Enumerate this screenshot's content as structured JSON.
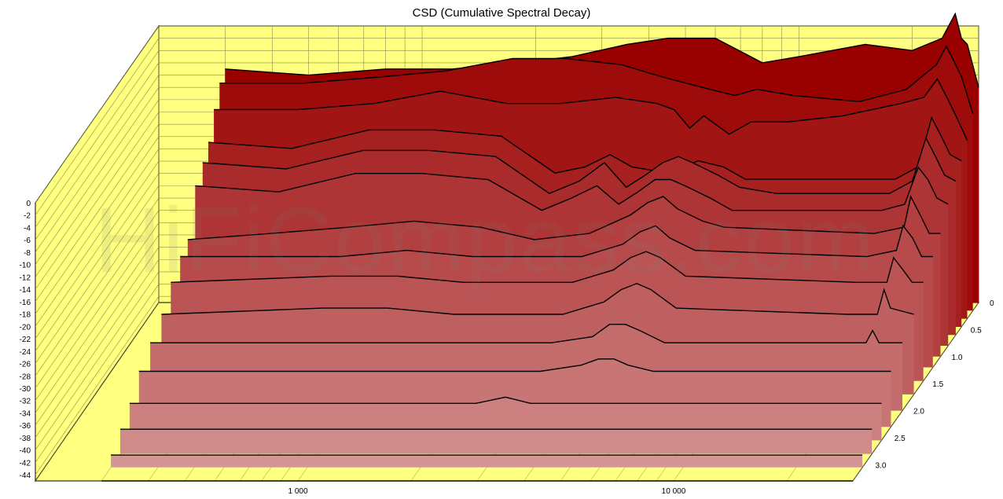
{
  "chart_data": {
    "type": "area",
    "title": "CSD (Cumulative Spectral Decay)",
    "watermark": "HiFiCompass.com",
    "x_scale": "log",
    "xlim": [
      200,
      30000
    ],
    "x_tick_labels": [
      {
        "value": 1000,
        "label": "1 000"
      },
      {
        "value": 10000,
        "label": "10 000"
      }
    ],
    "ylim": [
      -45,
      0
    ],
    "y_tick_labels": [
      "0",
      "-2",
      "-4",
      "-6",
      "-8",
      "-10",
      "-12",
      "-14",
      "-16",
      "-18",
      "-20",
      "-22",
      "-24",
      "-26",
      "-28",
      "-30",
      "-32",
      "-34",
      "-36",
      "-38",
      "-40",
      "-42",
      "-44"
    ],
    "z_tick_labels": [
      "0",
      "0.5",
      "1.0",
      "1.5",
      "2.0",
      "2.5",
      "3.0"
    ],
    "z_range": [
      0,
      3.3
    ],
    "colors": {
      "wall": "#ffff80",
      "grid": "#8c8c4a",
      "outline": "#000000",
      "slice_front": "#d9a0a0",
      "slice_back": "#990000"
    },
    "slices": [
      {
        "t": 0.0,
        "points": [
          [
            300,
            -7
          ],
          [
            500,
            -8
          ],
          [
            800,
            -7
          ],
          [
            1200,
            -7
          ],
          [
            1800,
            -6
          ],
          [
            2500,
            -5
          ],
          [
            3500,
            -3
          ],
          [
            4500,
            -2
          ],
          [
            6000,
            -2
          ],
          [
            8000,
            -6
          ],
          [
            10000,
            -5
          ],
          [
            15000,
            -3
          ],
          [
            20000,
            -4
          ],
          [
            24000,
            -2
          ],
          [
            26000,
            2
          ],
          [
            27000,
            -2
          ],
          [
            28000,
            -3
          ],
          [
            30000,
            -10
          ]
        ]
      },
      {
        "t": 0.15,
        "points": [
          [
            300,
            -8
          ],
          [
            500,
            -8
          ],
          [
            800,
            -7
          ],
          [
            1200,
            -6
          ],
          [
            1800,
            -4
          ],
          [
            2500,
            -4
          ],
          [
            3500,
            -5
          ],
          [
            4500,
            -7
          ],
          [
            6000,
            -9
          ],
          [
            7000,
            -10
          ],
          [
            8000,
            -9
          ],
          [
            10000,
            -10
          ],
          [
            15000,
            -11
          ],
          [
            20000,
            -9
          ],
          [
            24000,
            -5
          ],
          [
            25500,
            -2
          ],
          [
            26500,
            -4
          ],
          [
            28000,
            -7
          ],
          [
            30000,
            -13
          ]
        ]
      },
      {
        "t": 0.3,
        "points": [
          [
            300,
            -11
          ],
          [
            500,
            -11
          ],
          [
            800,
            -10
          ],
          [
            1200,
            -8
          ],
          [
            1800,
            -10
          ],
          [
            2500,
            -10
          ],
          [
            3500,
            -9
          ],
          [
            4500,
            -10
          ],
          [
            5000,
            -11
          ],
          [
            5500,
            -14
          ],
          [
            6000,
            -12
          ],
          [
            7000,
            -15
          ],
          [
            8000,
            -13
          ],
          [
            10000,
            -13
          ],
          [
            14000,
            -12
          ],
          [
            20000,
            -10
          ],
          [
            23000,
            -9
          ],
          [
            25000,
            -6
          ],
          [
            26500,
            -9
          ],
          [
            28000,
            -12
          ],
          [
            30000,
            -16
          ]
        ]
      },
      {
        "t": 0.45,
        "points": [
          [
            300,
            -15
          ],
          [
            500,
            -16
          ],
          [
            800,
            -13
          ],
          [
            1200,
            -13
          ],
          [
            1800,
            -14
          ],
          [
            2500,
            -20
          ],
          [
            3000,
            -19
          ],
          [
            3500,
            -17
          ],
          [
            4000,
            -19
          ],
          [
            5000,
            -20
          ],
          [
            6000,
            -18
          ],
          [
            7000,
            -19
          ],
          [
            8000,
            -21
          ],
          [
            10000,
            -21
          ],
          [
            20000,
            -21
          ],
          [
            23000,
            -19
          ],
          [
            25000,
            -11
          ],
          [
            26500,
            -14
          ],
          [
            28000,
            -17
          ],
          [
            30000,
            -18
          ]
        ]
      },
      {
        "t": 0.6,
        "points": [
          [
            300,
            -17
          ],
          [
            500,
            -18
          ],
          [
            800,
            -15
          ],
          [
            1200,
            -15
          ],
          [
            1800,
            -16
          ],
          [
            2500,
            -22
          ],
          [
            3000,
            -20
          ],
          [
            3500,
            -17
          ],
          [
            4000,
            -21
          ],
          [
            4500,
            -19
          ],
          [
            5000,
            -17
          ],
          [
            5500,
            -16
          ],
          [
            6000,
            -17
          ],
          [
            7000,
            -19
          ],
          [
            8000,
            -21
          ],
          [
            10000,
            -22
          ],
          [
            20000,
            -22
          ],
          [
            23000,
            -20
          ],
          [
            25000,
            -13
          ],
          [
            26500,
            -16
          ],
          [
            28000,
            -19
          ],
          [
            30000,
            -20
          ]
        ]
      },
      {
        "t": 0.8,
        "points": [
          [
            300,
            -19
          ],
          [
            500,
            -20
          ],
          [
            800,
            -17
          ],
          [
            1200,
            -17
          ],
          [
            1800,
            -18
          ],
          [
            2500,
            -23
          ],
          [
            3000,
            -21
          ],
          [
            3500,
            -19
          ],
          [
            4000,
            -22
          ],
          [
            4500,
            -20
          ],
          [
            5000,
            -18
          ],
          [
            5500,
            -18
          ],
          [
            6000,
            -19
          ],
          [
            7000,
            -21
          ],
          [
            8000,
            -23
          ],
          [
            20000,
            -23
          ],
          [
            23000,
            -22
          ],
          [
            25000,
            -16
          ],
          [
            26500,
            -18
          ],
          [
            28000,
            -21
          ],
          [
            30000,
            -22
          ]
        ]
      },
      {
        "t": 1.0,
        "points": [
          [
            300,
            -26
          ],
          [
            500,
            -25
          ],
          [
            800,
            -24
          ],
          [
            1200,
            -23
          ],
          [
            1800,
            -24
          ],
          [
            2500,
            -26
          ],
          [
            3500,
            -25
          ],
          [
            4500,
            -22
          ],
          [
            5000,
            -20
          ],
          [
            5500,
            -19
          ],
          [
            6000,
            -21
          ],
          [
            7000,
            -23
          ],
          [
            8000,
            -24
          ],
          [
            20000,
            -25
          ],
          [
            24000,
            -24
          ],
          [
            25000,
            -19
          ],
          [
            26500,
            -22
          ],
          [
            28000,
            -25
          ],
          [
            30000,
            -25
          ]
        ]
      },
      {
        "t": 1.2,
        "points": [
          [
            300,
            -27
          ],
          [
            800,
            -27
          ],
          [
            1200,
            -26
          ],
          [
            1800,
            -27
          ],
          [
            2500,
            -27
          ],
          [
            3500,
            -27
          ],
          [
            4500,
            -25
          ],
          [
            5000,
            -23
          ],
          [
            5500,
            -22
          ],
          [
            6000,
            -24
          ],
          [
            7000,
            -26
          ],
          [
            20000,
            -27
          ],
          [
            24000,
            -26
          ],
          [
            25000,
            -22
          ],
          [
            26500,
            -24
          ],
          [
            28000,
            -27
          ],
          [
            30000,
            -27
          ]
        ]
      },
      {
        "t": 1.45,
        "points": [
          [
            300,
            -29
          ],
          [
            800,
            -28
          ],
          [
            1200,
            -28
          ],
          [
            1800,
            -29
          ],
          [
            3500,
            -29
          ],
          [
            4500,
            -27
          ],
          [
            5000,
            -25
          ],
          [
            5500,
            -24
          ],
          [
            6000,
            -25
          ],
          [
            7000,
            -28
          ],
          [
            20000,
            -29
          ],
          [
            24000,
            -29
          ],
          [
            25000,
            -25
          ],
          [
            26500,
            -27
          ],
          [
            28000,
            -29
          ],
          [
            30000,
            -29
          ]
        ]
      },
      {
        "t": 1.7,
        "points": [
          [
            300,
            -32
          ],
          [
            800,
            -31
          ],
          [
            1200,
            -31
          ],
          [
            1800,
            -32
          ],
          [
            3500,
            -32
          ],
          [
            4500,
            -30
          ],
          [
            5000,
            -28
          ],
          [
            5500,
            -27
          ],
          [
            6000,
            -28
          ],
          [
            7000,
            -31
          ],
          [
            20000,
            -32
          ],
          [
            24000,
            -32
          ],
          [
            25000,
            -28
          ],
          [
            26000,
            -31
          ],
          [
            30000,
            -32
          ]
        ]
      },
      {
        "t": 2.0,
        "points": [
          [
            300,
            -34
          ],
          [
            800,
            -34
          ],
          [
            3500,
            -34
          ],
          [
            4500,
            -33
          ],
          [
            5000,
            -31
          ],
          [
            5500,
            -31
          ],
          [
            6000,
            -32
          ],
          [
            7000,
            -34
          ],
          [
            20000,
            -34
          ],
          [
            24000,
            -34
          ],
          [
            25000,
            -32
          ],
          [
            26000,
            -34
          ],
          [
            30000,
            -34
          ]
        ]
      },
      {
        "t": 2.3,
        "points": [
          [
            300,
            -36
          ],
          [
            3500,
            -36
          ],
          [
            4500,
            -35
          ],
          [
            5000,
            -34
          ],
          [
            5500,
            -34
          ],
          [
            6000,
            -35
          ],
          [
            7000,
            -36
          ],
          [
            30000,
            -36
          ]
        ]
      },
      {
        "t": 2.55,
        "points": [
          [
            300,
            -39
          ],
          [
            2500,
            -39
          ],
          [
            3000,
            -38
          ],
          [
            3500,
            -39
          ],
          [
            30000,
            -39
          ]
        ]
      },
      {
        "t": 2.8,
        "points": [
          [
            300,
            -41
          ],
          [
            30000,
            -41
          ]
        ]
      },
      {
        "t": 3.05,
        "points": [
          [
            300,
            -43
          ],
          [
            30000,
            -43
          ]
        ]
      },
      {
        "t": 3.3,
        "points": [
          [
            300,
            -45
          ],
          [
            30000,
            -45
          ]
        ]
      }
    ]
  }
}
